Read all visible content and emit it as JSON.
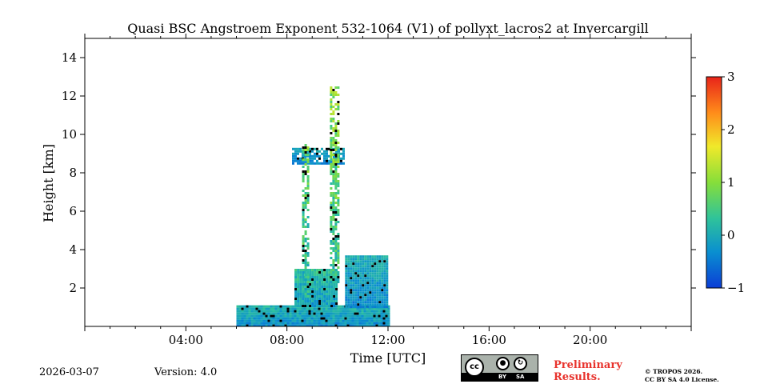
{
  "chart_data": {
    "type": "heatmap",
    "title": "Quasi BSC Angstroem Exponent 532-1064 (V1) of pollyxt_lacros2 at Invercargill",
    "xlabel": "Time [UTC]",
    "ylabel": "Height [km]",
    "xlim_hours": [
      0,
      24
    ],
    "ylim_km": [
      0,
      15
    ],
    "x_ticks": [
      {
        "hour": 4,
        "label": "04:00"
      },
      {
        "hour": 8,
        "label": "08:00"
      },
      {
        "hour": 12,
        "label": "12:00"
      },
      {
        "hour": 16,
        "label": "16:00"
      },
      {
        "hour": 20,
        "label": "20:00"
      }
    ],
    "y_ticks": [
      {
        "km": 2,
        "label": "2"
      },
      {
        "km": 4,
        "label": "4"
      },
      {
        "km": 6,
        "label": "6"
      },
      {
        "km": 8,
        "label": "8"
      },
      {
        "km": 10,
        "label": "10"
      },
      {
        "km": 12,
        "label": "12"
      },
      {
        "km": 14,
        "label": "14"
      }
    ],
    "colorbar": {
      "min": -1,
      "max": 3,
      "ticks": [
        {
          "value": 3,
          "label": "3"
        },
        {
          "value": 2,
          "label": "2"
        },
        {
          "value": 1,
          "label": "1"
        },
        {
          "value": 0,
          "label": "0"
        },
        {
          "value": -1,
          "label": "−1"
        }
      ],
      "colors": [
        "#0b3dd6",
        "#0a8fd0",
        "#2fc39a",
        "#86de3a",
        "#f0e92a",
        "#ff8c1a",
        "#e8241a"
      ]
    },
    "data_regions": [
      {
        "name": "boundary-layer",
        "t_start": 6.0,
        "t_end": 12.0,
        "h_bottom": 0.0,
        "h_top": 1.1,
        "value_low": -0.6,
        "value_high": 0.4
      },
      {
        "name": "cloud-layer-1",
        "t_start": 8.3,
        "t_end": 10.0,
        "h_bottom": 1.0,
        "h_top": 3.0,
        "value_low": -0.5,
        "value_high": 0.6
      },
      {
        "name": "aerosol-layer-2",
        "t_start": 10.3,
        "t_end": 12.0,
        "h_bottom": 1.0,
        "h_top": 3.7,
        "value_low": -0.6,
        "value_high": 0.3
      },
      {
        "name": "cirrus",
        "t_start": 8.2,
        "t_end": 10.2,
        "h_bottom": 8.5,
        "h_top": 9.3,
        "value_low": -0.6,
        "value_high": 0.2
      },
      {
        "name": "profile-column-1",
        "t_start": 8.6,
        "t_end": 8.8,
        "h_bottom": 1.5,
        "h_top": 9.5,
        "value_low": -0.3,
        "value_high": 1.3
      },
      {
        "name": "profile-column-2",
        "t_start": 9.7,
        "t_end": 10.0,
        "h_bottom": 2.3,
        "h_top": 12.5,
        "value_low": -0.2,
        "value_high": 1.5
      }
    ]
  },
  "footer": {
    "date": "2026-03-07",
    "version": "Version: 4.0",
    "license_badge": {
      "cc": "cc",
      "by": "BY",
      "sa": "SA"
    },
    "preliminary_line1": "Preliminary",
    "preliminary_line2": "Results.",
    "copyright_line1": "© TROPOS 2026.",
    "copyright_line2": "CC BY SA 4.0 License."
  },
  "colors": {
    "preliminary": "#e8332d",
    "badge_background": "#aab2ab"
  }
}
